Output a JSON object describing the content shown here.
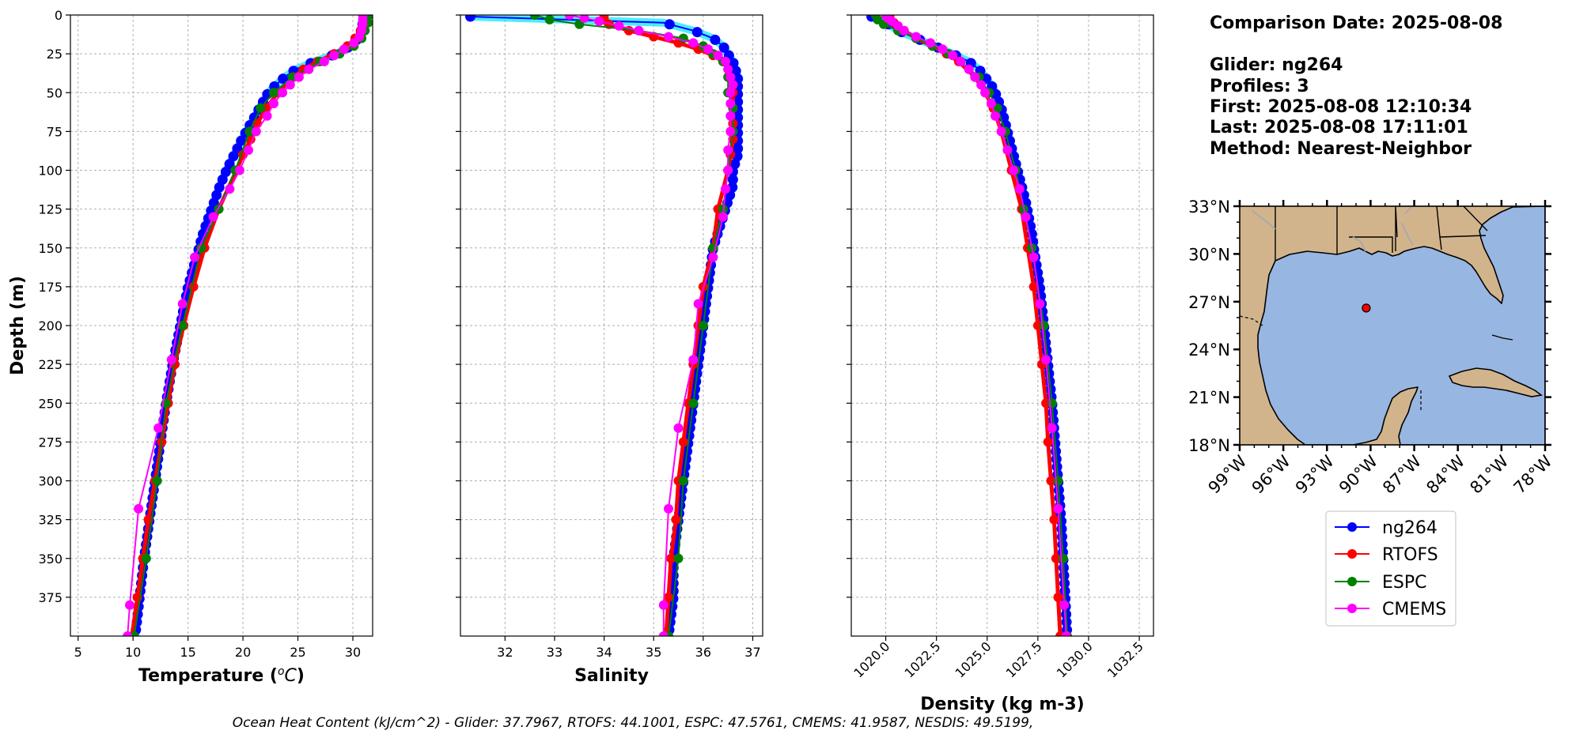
{
  "colors": {
    "ng264": "#0000ff",
    "ng264_glow": "#00e5ff",
    "RTOFS": "#ff0000",
    "ESPC": "#008000",
    "CMEMS": "#ff00ff",
    "land": "#d2b48c",
    "ocean": "#97b6e1",
    "marker": "#ff0000"
  },
  "info": {
    "comparison_date": "Comparison Date: 2025-08-08",
    "glider": "Glider: ng264",
    "profiles": "Profiles: 3",
    "first": "First: 2025-08-08 12:10:34",
    "last": "Last: 2025-08-08 17:11:01",
    "method": "Method: Nearest-Neighbor"
  },
  "footer": "Ocean Heat Content (kJ/cm^2) - Glider: 37.7967,  RTOFS: 44.1001,  ESPC: 47.5761,  CMEMS: 41.9587,  NESDIS: 49.5199,",
  "map": {
    "lat_range": [
      18,
      33
    ],
    "lon_range": [
      -99,
      -78
    ],
    "lat_ticks": [
      "33°N",
      "30°N",
      "27°N",
      "24°N",
      "21°N",
      "18°N"
    ],
    "lon_ticks": [
      "99°W",
      "96°W",
      "93°W",
      "90°W",
      "87°W",
      "84°W",
      "81°W",
      "78°W"
    ],
    "glider_location": {
      "lon": -90.3,
      "lat": 26.6
    }
  },
  "chart_data": [
    {
      "type": "line",
      "xlabel": "Temperature (°C)",
      "ylabel": "Depth (m)",
      "xlim": [
        4.3,
        31.8
      ],
      "ylim": [
        400,
        0
      ],
      "xticks": [
        5,
        10,
        15,
        20,
        25,
        30
      ],
      "yticks": [
        0,
        25,
        50,
        75,
        100,
        125,
        150,
        175,
        200,
        225,
        250,
        275,
        300,
        325,
        350,
        375
      ],
      "grid": true,
      "series": [
        {
          "name": "ng264",
          "depth": [
            0,
            5,
            10,
            15,
            20,
            25,
            30,
            35,
            40,
            45,
            50,
            60,
            70,
            80,
            90,
            100,
            110,
            120,
            130,
            140,
            150,
            175,
            200,
            225,
            250,
            275,
            300,
            325,
            350,
            375,
            400
          ],
          "values": [
            31.0,
            30.9,
            30.8,
            30.5,
            29.8,
            28.5,
            26.5,
            24.8,
            23.8,
            23.0,
            22.3,
            21.5,
            20.7,
            19.9,
            19.2,
            18.5,
            17.9,
            17.4,
            16.9,
            16.4,
            16.0,
            15.0,
            14.3,
            13.6,
            13.0,
            12.5,
            12.0,
            11.5,
            11.0,
            10.6,
            10.2
          ]
        },
        {
          "name": "RTOFS",
          "depth": [
            0,
            5,
            10,
            15,
            20,
            25,
            30,
            35,
            40,
            50,
            60,
            70,
            80,
            90,
            100,
            125,
            150,
            175,
            200,
            225,
            250,
            275,
            300,
            325,
            350,
            375,
            400
          ],
          "values": [
            31.2,
            31.0,
            30.7,
            30.2,
            29.5,
            28.3,
            26.8,
            25.5,
            24.6,
            23.2,
            22.1,
            21.3,
            20.7,
            20.0,
            19.4,
            17.8,
            16.5,
            15.5,
            14.6,
            13.8,
            13.2,
            12.6,
            12.0,
            11.4,
            10.9,
            10.4,
            9.9
          ]
        },
        {
          "name": "ESPC",
          "depth": [
            0,
            5,
            10,
            15,
            20,
            25,
            30,
            40,
            50,
            60,
            75,
            100,
            125,
            150,
            200,
            250,
            300,
            350,
            400
          ],
          "values": [
            31.5,
            31.4,
            31.1,
            30.8,
            30.1,
            28.8,
            27.0,
            24.5,
            22.8,
            21.6,
            20.6,
            19.3,
            17.8,
            16.2,
            14.5,
            13.0,
            12.2,
            11.2,
            10.1
          ]
        },
        {
          "name": "CMEMS",
          "depth": [
            0,
            3,
            6,
            10,
            14,
            18,
            22,
            26,
            30,
            35,
            40,
            45,
            50,
            57,
            65,
            75,
            87,
            100,
            112,
            130,
            156,
            186,
            222,
            266,
            318,
            380,
            400
          ],
          "values": [
            30.9,
            30.9,
            30.9,
            30.8,
            30.6,
            30.1,
            29.2,
            28.3,
            27.4,
            26.0,
            25.1,
            24.3,
            23.6,
            22.8,
            22.2,
            21.2,
            20.5,
            19.7,
            18.8,
            17.3,
            15.6,
            14.5,
            13.5,
            12.3,
            10.5,
            9.7,
            9.5
          ]
        }
      ]
    },
    {
      "type": "line",
      "xlabel": "Salinity",
      "ylabel": "",
      "xlim": [
        31.1,
        37.2
      ],
      "ylim": [
        400,
        0
      ],
      "xticks": [
        32,
        33,
        34,
        35,
        36,
        37
      ],
      "yticks": [
        0,
        25,
        50,
        75,
        100,
        125,
        150,
        175,
        200,
        225,
        250,
        275,
        300,
        325,
        350,
        375
      ],
      "grid": true,
      "series": [
        {
          "name": "ng264",
          "depth": [
            1,
            5,
            10,
            15,
            20,
            25,
            30,
            40,
            50,
            60,
            70,
            80,
            90,
            100,
            110,
            120,
            130,
            140,
            150,
            175,
            200,
            225,
            250,
            275,
            300,
            325,
            350,
            375,
            400
          ],
          "values": [
            31.3,
            35.2,
            35.8,
            36.2,
            36.4,
            36.5,
            36.6,
            36.7,
            36.7,
            36.7,
            36.7,
            36.7,
            36.7,
            36.6,
            36.6,
            36.5,
            36.4,
            36.3,
            36.2,
            36.1,
            36.0,
            35.9,
            35.8,
            35.7,
            35.6,
            35.5,
            35.4,
            35.4,
            35.3
          ]
        },
        {
          "name": "RTOFS",
          "depth": [
            0,
            3,
            6,
            10,
            14,
            18,
            22,
            26,
            30,
            35,
            40,
            45,
            50,
            60,
            70,
            80,
            90,
            100,
            125,
            150,
            175,
            200,
            225,
            250,
            275,
            300,
            325,
            350,
            375,
            400
          ],
          "values": [
            34.0,
            34.0,
            34.1,
            34.5,
            35.0,
            35.5,
            35.9,
            36.2,
            36.4,
            36.5,
            36.55,
            36.6,
            36.6,
            36.6,
            36.6,
            36.6,
            36.55,
            36.5,
            36.3,
            36.2,
            36.0,
            35.9,
            35.8,
            35.7,
            35.6,
            35.5,
            35.45,
            35.35,
            35.3,
            35.25
          ]
        },
        {
          "name": "ESPC",
          "depth": [
            0,
            3,
            6,
            10,
            15,
            20,
            25,
            30,
            40,
            50,
            60,
            75,
            100,
            125,
            150,
            200,
            250,
            300,
            350,
            400
          ],
          "values": [
            32.6,
            32.9,
            33.5,
            34.7,
            35.6,
            36.0,
            36.2,
            36.4,
            36.5,
            36.5,
            36.6,
            36.6,
            36.5,
            36.4,
            36.2,
            36.0,
            35.8,
            35.6,
            35.5,
            35.3
          ]
        },
        {
          "name": "CMEMS",
          "depth": [
            0,
            2,
            4,
            7,
            10,
            14,
            18,
            22,
            26,
            30,
            35,
            40,
            45,
            50,
            57,
            65,
            75,
            87,
            100,
            112,
            130,
            156,
            186,
            222,
            266,
            318,
            380,
            400
          ],
          "values": [
            33.3,
            33.6,
            33.9,
            34.3,
            34.7,
            35.3,
            35.8,
            36.1,
            36.3,
            36.45,
            36.5,
            36.55,
            36.6,
            36.55,
            36.55,
            36.55,
            36.55,
            36.5,
            36.5,
            36.45,
            36.4,
            36.2,
            35.9,
            35.8,
            35.5,
            35.3,
            35.2,
            35.2
          ]
        }
      ]
    },
    {
      "type": "line",
      "xlabel": "Density (kg m-3)",
      "ylabel": "",
      "xlim": [
        1018.3,
        1033.2
      ],
      "ylim": [
        400,
        0
      ],
      "xticks": [
        1020.0,
        1022.5,
        1025.0,
        1027.5,
        1030.0,
        1032.5
      ],
      "xtick_labels": [
        "1020.0",
        "1022.5",
        "1025.0",
        "1027.5",
        "1030.0",
        "1032.5"
      ],
      "yticks": [
        0,
        25,
        50,
        75,
        100,
        125,
        150,
        175,
        200,
        225,
        250,
        275,
        300,
        325,
        350,
        375
      ],
      "grid": true,
      "series": [
        {
          "name": "ng264",
          "depth": [
            1,
            5,
            10,
            15,
            20,
            25,
            30,
            35,
            40,
            45,
            50,
            60,
            70,
            80,
            90,
            100,
            110,
            120,
            130,
            140,
            150,
            175,
            200,
            225,
            250,
            275,
            300,
            325,
            350,
            375,
            400
          ],
          "values": [
            1019.3,
            1020.0,
            1020.6,
            1021.5,
            1022.4,
            1023.3,
            1024.1,
            1024.6,
            1024.9,
            1025.2,
            1025.4,
            1025.7,
            1025.9,
            1026.1,
            1026.3,
            1026.5,
            1026.7,
            1026.9,
            1027.05,
            1027.2,
            1027.3,
            1027.6,
            1027.8,
            1028.0,
            1028.2,
            1028.35,
            1028.5,
            1028.65,
            1028.75,
            1028.85,
            1028.95
          ]
        },
        {
          "name": "RTOFS",
          "depth": [
            0,
            5,
            10,
            15,
            20,
            25,
            30,
            40,
            50,
            60,
            75,
            100,
            125,
            150,
            175,
            200,
            225,
            250,
            275,
            300,
            325,
            350,
            375,
            400
          ],
          "values": [
            1020.2,
            1020.4,
            1020.9,
            1021.5,
            1022.3,
            1023.0,
            1023.6,
            1024.4,
            1024.9,
            1025.3,
            1025.7,
            1026.2,
            1026.7,
            1027.0,
            1027.3,
            1027.5,
            1027.7,
            1027.9,
            1028.0,
            1028.15,
            1028.3,
            1028.4,
            1028.5,
            1028.6
          ]
        },
        {
          "name": "ESPC",
          "depth": [
            0,
            3,
            6,
            10,
            15,
            20,
            25,
            30,
            40,
            50,
            60,
            75,
            100,
            125,
            150,
            200,
            250,
            300,
            350,
            400
          ],
          "values": [
            1019.5,
            1019.6,
            1019.9,
            1020.6,
            1021.5,
            1022.3,
            1023.1,
            1023.7,
            1024.6,
            1025.1,
            1025.5,
            1025.9,
            1026.4,
            1026.8,
            1027.2,
            1027.8,
            1028.2,
            1028.5,
            1028.75,
            1028.95
          ]
        },
        {
          "name": "CMEMS",
          "depth": [
            0,
            2,
            4,
            7,
            10,
            14,
            18,
            22,
            26,
            30,
            35,
            40,
            45,
            50,
            57,
            65,
            75,
            87,
            100,
            112,
            130,
            156,
            186,
            222,
            266,
            318,
            380,
            400
          ],
          "values": [
            1020.0,
            1020.1,
            1020.3,
            1020.6,
            1020.9,
            1021.5,
            1022.2,
            1022.8,
            1023.3,
            1023.7,
            1024.1,
            1024.4,
            1024.7,
            1024.9,
            1025.2,
            1025.4,
            1025.7,
            1026.0,
            1026.3,
            1026.6,
            1026.9,
            1027.3,
            1027.6,
            1027.9,
            1028.2,
            1028.5,
            1028.8,
            1028.9
          ]
        }
      ]
    }
  ]
}
